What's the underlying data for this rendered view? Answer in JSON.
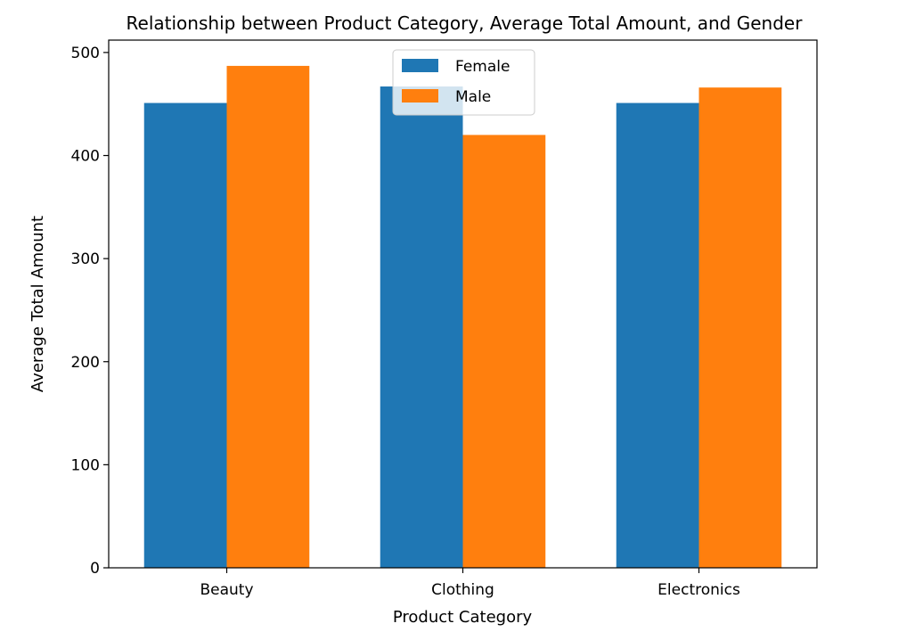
{
  "chart_data": {
    "type": "bar",
    "title": "Relationship between Product Category, Average Total Amount, and Gender",
    "xlabel": "Product Category",
    "ylabel": "Average Total Amount",
    "categories": [
      "Beauty",
      "Clothing",
      "Electronics"
    ],
    "series": [
      {
        "name": "Female",
        "color": "#1f77b4",
        "values": [
          451,
          467,
          451
        ]
      },
      {
        "name": "Male",
        "color": "#ff7f0e",
        "values": [
          487,
          420,
          466
        ]
      }
    ],
    "ylim": [
      0,
      512
    ],
    "yticks": [
      0,
      100,
      200,
      300,
      400,
      500
    ],
    "grid": false,
    "legend_position": "top-center"
  }
}
